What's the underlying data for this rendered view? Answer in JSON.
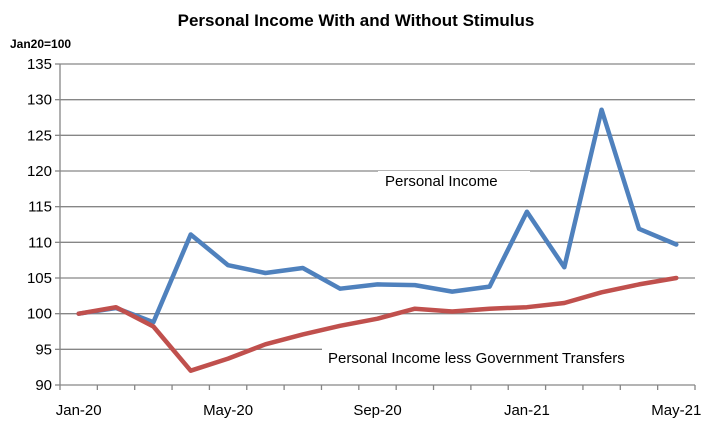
{
  "chart_data": {
    "type": "line",
    "title": "Personal Income With and Without Stimulus",
    "unit_label": "Jan20=100",
    "xlabel": "",
    "ylabel": "",
    "ylim": [
      90,
      135
    ],
    "y_ticks": [
      90,
      95,
      100,
      105,
      110,
      115,
      120,
      125,
      130,
      135
    ],
    "grid": "horizontal",
    "categories": [
      "Jan-20",
      "Feb-20",
      "Mar-20",
      "Apr-20",
      "May-20",
      "Jun-20",
      "Jul-20",
      "Aug-20",
      "Sep-20",
      "Oct-20",
      "Nov-20",
      "Dec-20",
      "Jan-21",
      "Feb-21",
      "Mar-21",
      "Apr-21",
      "May-21"
    ],
    "x_tick_labels": [
      {
        "index": 0,
        "label": "Jan-20"
      },
      {
        "index": 4,
        "label": "May-20"
      },
      {
        "index": 8,
        "label": "Sep-20"
      },
      {
        "index": 12,
        "label": "Jan-21"
      },
      {
        "index": 16,
        "label": "May-21"
      }
    ],
    "series": [
      {
        "name": "Personal Income",
        "color": "#4F81BD",
        "values": [
          100.0,
          100.8,
          98.8,
          111.1,
          106.8,
          105.7,
          106.4,
          103.5,
          104.1,
          104.0,
          103.1,
          103.8,
          114.3,
          106.5,
          128.6,
          111.9,
          109.7
        ]
      },
      {
        "name": "Personal Income less Government  Transfers",
        "color": "#C0504D",
        "values": [
          100.0,
          100.9,
          98.2,
          92.0,
          93.7,
          95.7,
          97.1,
          98.3,
          99.3,
          100.7,
          100.3,
          100.7,
          100.9,
          101.5,
          103.0,
          104.1,
          105.0
        ]
      }
    ]
  }
}
